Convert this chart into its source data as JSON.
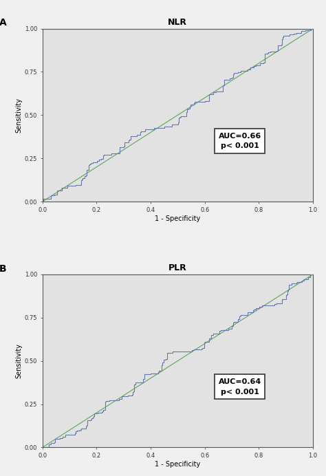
{
  "panel_A_title": "NLR",
  "panel_B_title": "PLR",
  "panel_A_label": "A",
  "panel_B_label": "B",
  "auc_A": "AUC=0.66",
  "p_A": "p< 0.001",
  "auc_B": "AUC=0.64",
  "p_B": "p< 0.001",
  "xlabel": "1 - Specificity",
  "ylabel": "Sensitivity",
  "xlim": [
    0.0,
    1.0
  ],
  "ylim": [
    0.0,
    1.0
  ],
  "xticks": [
    0.0,
    0.2,
    0.4,
    0.6,
    0.8,
    1.0
  ],
  "yticks": [
    0.0,
    0.25,
    0.5,
    0.75,
    1.0
  ],
  "ytick_labels": [
    "0.00",
    "0.25",
    "0.50",
    "0.75",
    "1.00"
  ],
  "roc_color": "#6878a8",
  "diag_color": "#6aaa6a",
  "plot_bg": "#e2e2e2",
  "fig_bg": "#f0f0f0",
  "auc_A_value": 0.66,
  "auc_B_value": 0.64,
  "seed_A": 42,
  "seed_B": 77,
  "n_steps_A": 120,
  "n_steps_B": 120,
  "title_fontsize": 9,
  "label_fontsize": 7,
  "tick_fontsize": 6,
  "annot_fontsize": 8,
  "panel_label_fontsize": 10
}
